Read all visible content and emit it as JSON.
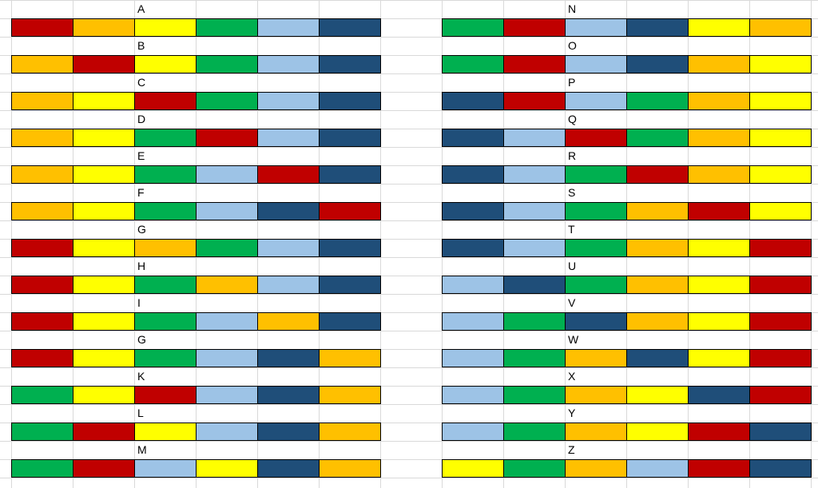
{
  "colors": {
    "R": "#c00000",
    "O": "#ffc000",
    "Y": "#ffff00",
    "G": "#00b050",
    "L": "#9dc3e6",
    "B": "#1f4e79"
  },
  "left": [
    {
      "label": "A",
      "cells": [
        "R",
        "O",
        "Y",
        "G",
        "L",
        "B"
      ]
    },
    {
      "label": "B",
      "cells": [
        "O",
        "R",
        "Y",
        "G",
        "L",
        "B"
      ]
    },
    {
      "label": "C",
      "cells": [
        "O",
        "Y",
        "R",
        "G",
        "L",
        "B"
      ]
    },
    {
      "label": "D",
      "cells": [
        "O",
        "Y",
        "G",
        "R",
        "L",
        "B"
      ]
    },
    {
      "label": "E",
      "cells": [
        "O",
        "Y",
        "G",
        "L",
        "R",
        "B"
      ]
    },
    {
      "label": "F",
      "cells": [
        "O",
        "Y",
        "G",
        "L",
        "B",
        "R"
      ]
    },
    {
      "label": "G",
      "cells": [
        "R",
        "Y",
        "O",
        "G",
        "L",
        "B"
      ]
    },
    {
      "label": "H",
      "cells": [
        "R",
        "Y",
        "G",
        "O",
        "L",
        "B"
      ]
    },
    {
      "label": "I",
      "cells": [
        "R",
        "Y",
        "G",
        "L",
        "O",
        "B"
      ]
    },
    {
      "label": "G",
      "cells": [
        "R",
        "Y",
        "G",
        "L",
        "B",
        "O"
      ]
    },
    {
      "label": "K",
      "cells": [
        "G",
        "Y",
        "R",
        "L",
        "B",
        "O"
      ]
    },
    {
      "label": "L",
      "cells": [
        "G",
        "R",
        "Y",
        "L",
        "B",
        "O"
      ]
    },
    {
      "label": "M",
      "cells": [
        "G",
        "R",
        "L",
        "Y",
        "B",
        "O"
      ]
    }
  ],
  "right": [
    {
      "label": "N",
      "cells": [
        "G",
        "R",
        "L",
        "B",
        "Y",
        "O"
      ]
    },
    {
      "label": "O",
      "cells": [
        "G",
        "R",
        "L",
        "B",
        "O",
        "Y"
      ]
    },
    {
      "label": "P",
      "cells": [
        "B",
        "R",
        "L",
        "G",
        "O",
        "Y"
      ]
    },
    {
      "label": "Q",
      "cells": [
        "B",
        "L",
        "R",
        "G",
        "O",
        "Y"
      ]
    },
    {
      "label": "R",
      "cells": [
        "B",
        "L",
        "G",
        "R",
        "O",
        "Y"
      ]
    },
    {
      "label": "S",
      "cells": [
        "B",
        "L",
        "G",
        "O",
        "R",
        "Y"
      ]
    },
    {
      "label": "T",
      "cells": [
        "B",
        "L",
        "G",
        "O",
        "Y",
        "R"
      ]
    },
    {
      "label": "U",
      "cells": [
        "L",
        "B",
        "G",
        "O",
        "Y",
        "R"
      ]
    },
    {
      "label": "V",
      "cells": [
        "L",
        "G",
        "B",
        "O",
        "Y",
        "R"
      ]
    },
    {
      "label": "W",
      "cells": [
        "L",
        "G",
        "O",
        "B",
        "Y",
        "R"
      ]
    },
    {
      "label": "X",
      "cells": [
        "L",
        "G",
        "O",
        "Y",
        "B",
        "R"
      ]
    },
    {
      "label": "Y",
      "cells": [
        "L",
        "G",
        "O",
        "Y",
        "R",
        "B"
      ]
    },
    {
      "label": "Z",
      "cells": [
        "Y",
        "G",
        "O",
        "L",
        "R",
        "B"
      ]
    }
  ]
}
